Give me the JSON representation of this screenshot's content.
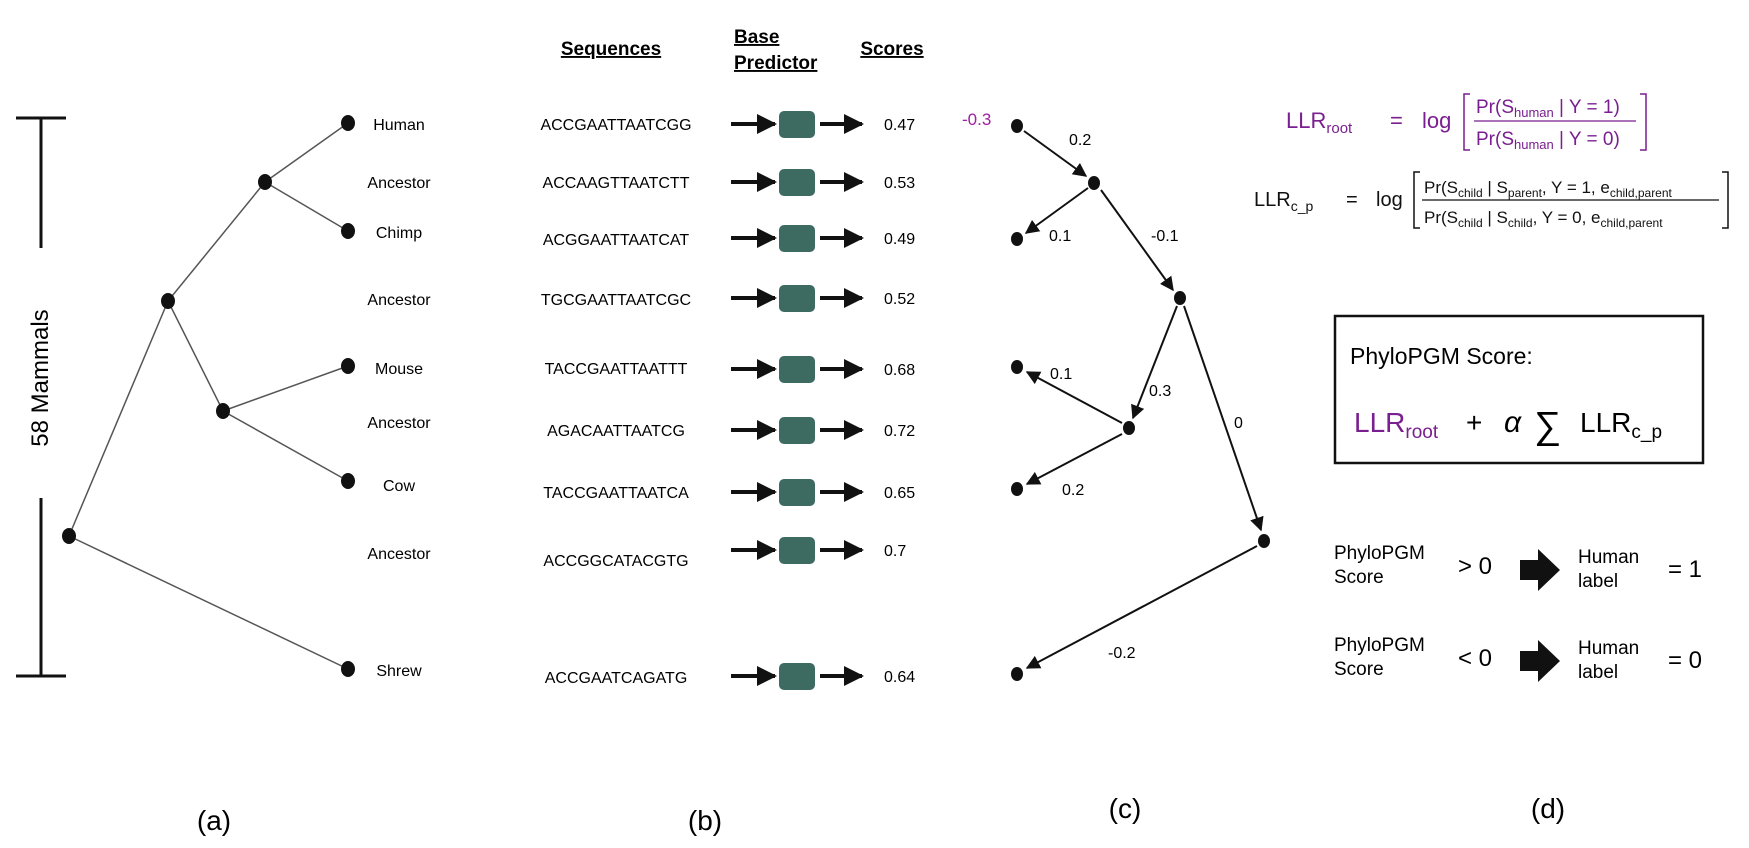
{
  "panel_a": {
    "scale_label": "58 Mammals",
    "caption": "(a)",
    "leaves": [
      "Human",
      "Ancestor",
      "Chimp",
      "Ancestor",
      "Mouse",
      "Ancestor",
      "Cow",
      "Ancestor",
      "Shrew"
    ]
  },
  "panel_b": {
    "caption": "(b)",
    "headers": {
      "sequences": "Sequences",
      "predictor_line1": "Base",
      "predictor_line2": "Predictor",
      "scores": "Scores"
    },
    "rows": [
      {
        "sequence": "ACCGAATTAATCGG",
        "score": "0.47"
      },
      {
        "sequence": "ACCAAGTTAATCTT",
        "score": "0.53"
      },
      {
        "sequence": "ACGGAATTAATCAT",
        "score": "0.49"
      },
      {
        "sequence": "TGCGAATTAATCGC",
        "score": "0.52"
      },
      {
        "sequence": "TACCGAATTAATTT",
        "score": "0.68"
      },
      {
        "sequence": "AGACAATTAATCG",
        "score": "0.72"
      },
      {
        "sequence": "TACCGAATTAATCA",
        "score": "0.65"
      },
      {
        "sequence": "ACCGGCATACGTG",
        "score": "0.7"
      },
      {
        "sequence": "ACCGAATCAGATG",
        "score": "0.64"
      }
    ],
    "colors": {
      "predictor": "#3d6b62"
    }
  },
  "panel_c": {
    "caption": "(c)",
    "root_value": "-0.3",
    "edge_labels": [
      "0.2",
      "0.1",
      "-0.1",
      "0.1",
      "0.3",
      "0",
      "0.2",
      "-0.2"
    ],
    "colors": {
      "root_value": "#a020a0"
    }
  },
  "panel_d": {
    "caption": "(d)",
    "llr_root": {
      "lhs": "LLR",
      "lhs_sub": "root",
      "eq": "=",
      "log": "log",
      "num": "Pr(S",
      "num_sub": "human",
      "num_tail": " | Y = 1)",
      "den": "Pr(S",
      "den_sub": "human",
      "den_tail": " | Y = 0)"
    },
    "llr_cp": {
      "lhs": "LLR",
      "lhs_sub": "c_p",
      "eq": "=",
      "log": "log",
      "num_a": "Pr(S",
      "num_sub1": "child",
      "num_b": " | S",
      "num_sub2": "parent",
      "num_c": ", Y = 1, e",
      "num_sub3": "child,parent",
      "den_a": "Pr(S",
      "den_sub1": "child",
      "den_b": " | S",
      "den_sub2": "child",
      "den_c": ", Y = 0, e",
      "den_sub3": "child,parent"
    },
    "score_box": {
      "title": "PhyloPGM Score:",
      "term1": "LLR",
      "term1_sub": "root",
      "plus": "+",
      "alpha": "α",
      "sum": "∑",
      "term2": "LLR",
      "term2_sub": "c_p"
    },
    "rules": [
      {
        "line1": "PhyloPGM",
        "line2": "Score",
        "comparison": "> 0",
        "label1": "Human",
        "label2": "label",
        "result": "= 1"
      },
      {
        "line1": "PhyloPGM",
        "line2": "Score",
        "comparison": "< 0",
        "label1": "Human",
        "label2": "label",
        "result": "= 0"
      }
    ],
    "colors": {
      "accent": "#7a1f8f"
    }
  }
}
